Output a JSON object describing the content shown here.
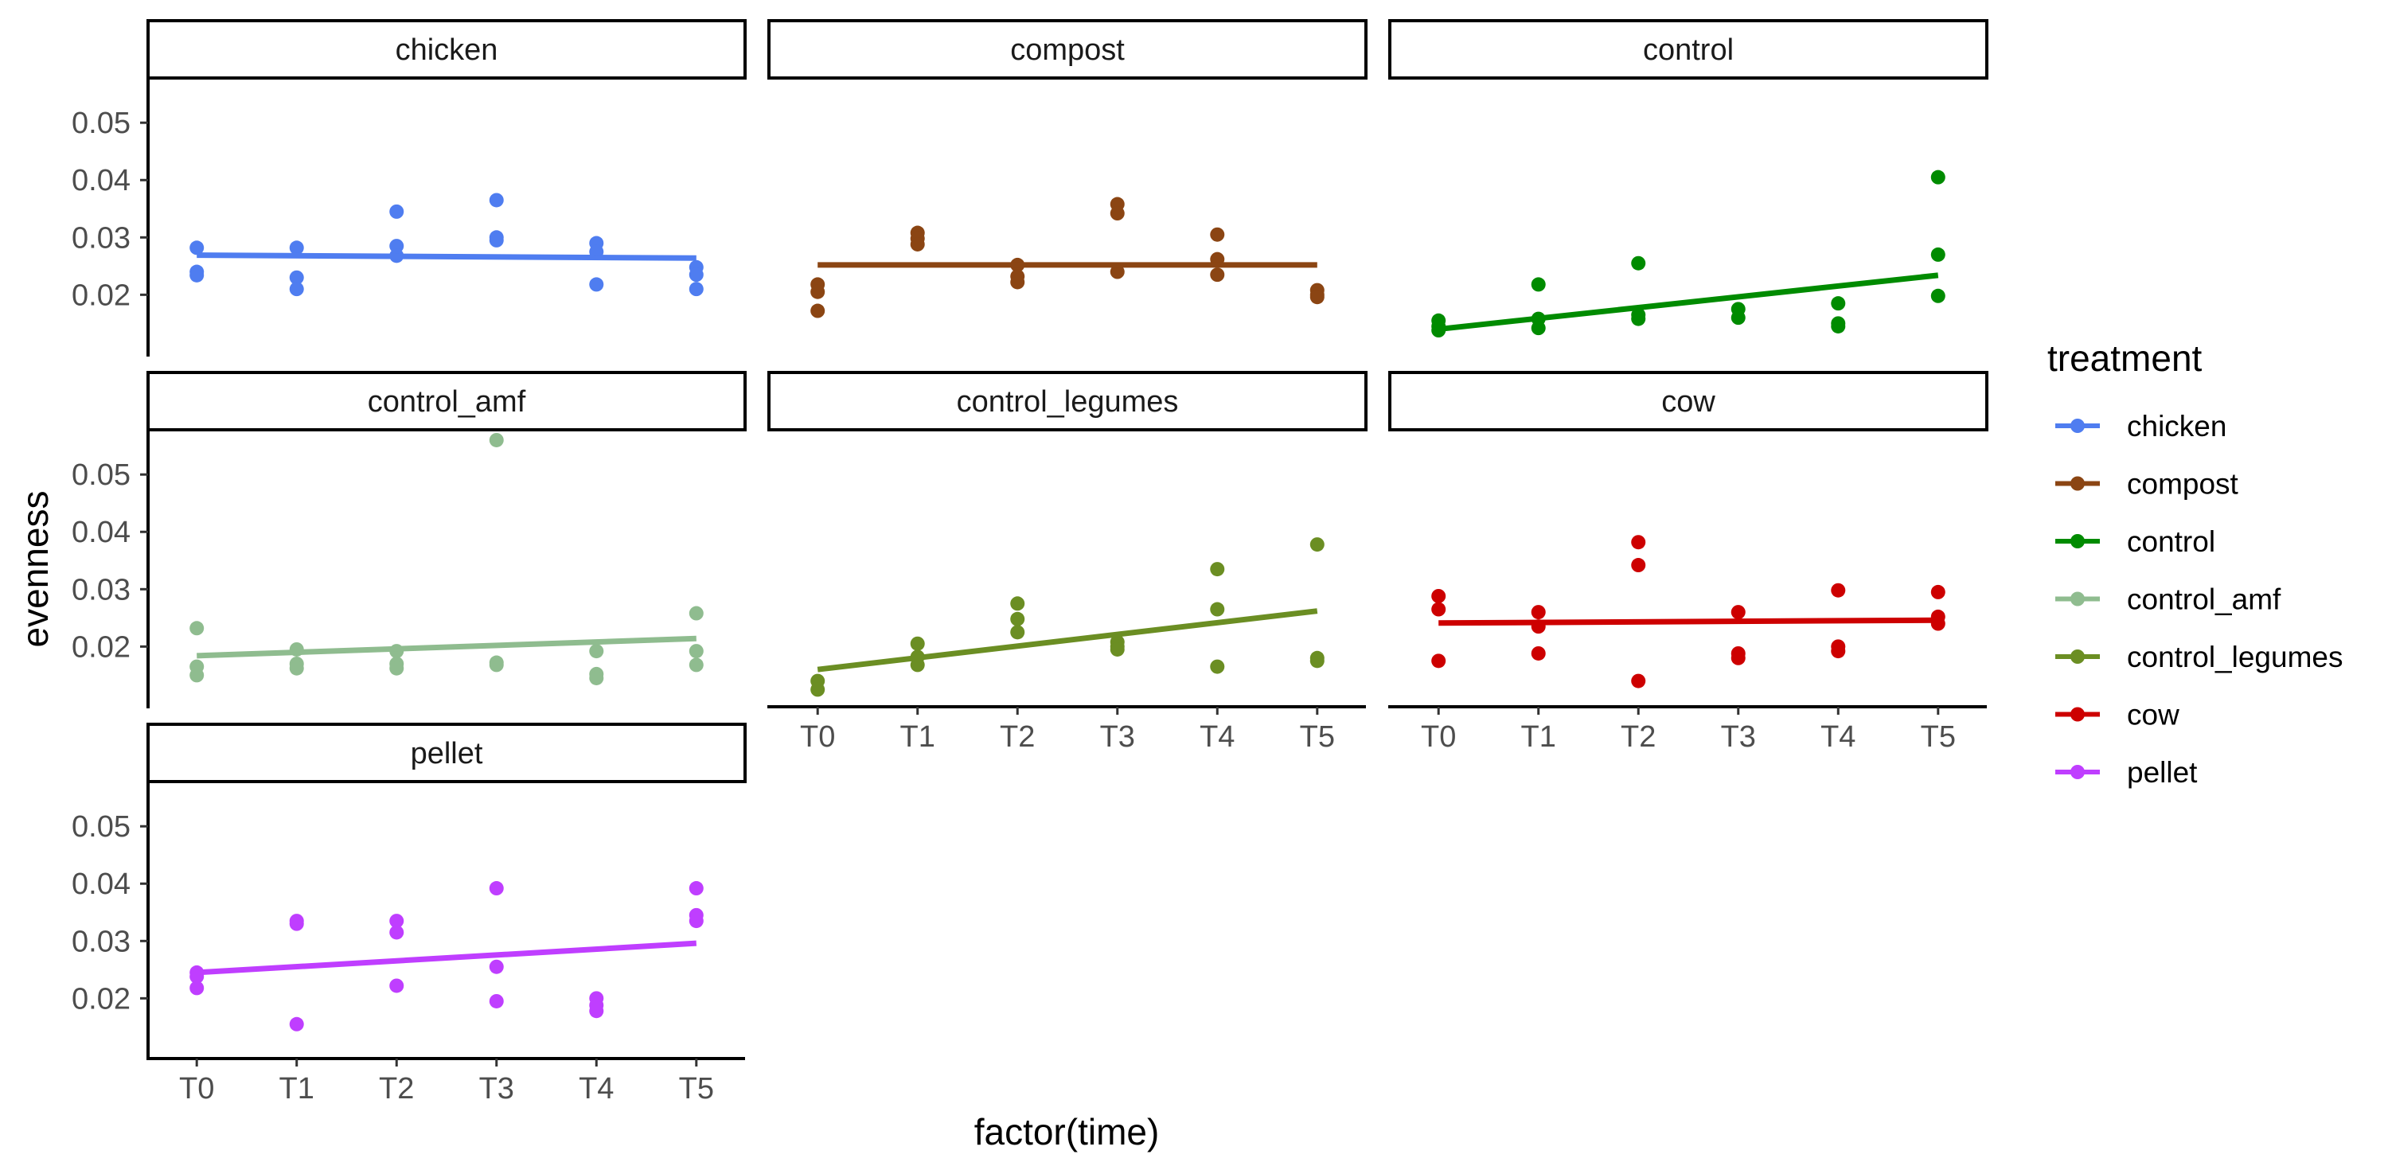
{
  "chart_data": {
    "type": "scatter",
    "facet_by": "treatment",
    "xlabel": "factor(time)",
    "ylabel": "evenness",
    "x_categories": [
      "T0",
      "T1",
      "T2",
      "T3",
      "T4",
      "T5"
    ],
    "y_ticks": [
      0.02,
      0.03,
      0.04,
      0.05
    ],
    "y_ticks_text": [
      "0.02",
      "0.03",
      "0.04",
      "0.05"
    ],
    "ylim": [
      0.0095,
      0.0578
    ],
    "legend": {
      "title": "treatment",
      "position": "right"
    },
    "grid": false,
    "panels": [
      {
        "name": "chicken",
        "color": "#4F7DF0",
        "points": [
          [
            0,
            0.0282
          ],
          [
            0,
            0.024
          ],
          [
            0,
            0.0234
          ],
          [
            1,
            0.0282
          ],
          [
            1,
            0.023
          ],
          [
            1,
            0.021
          ],
          [
            2,
            0.0345
          ],
          [
            2,
            0.0285
          ],
          [
            2,
            0.0268
          ],
          [
            3,
            0.0365
          ],
          [
            3,
            0.03
          ],
          [
            3,
            0.0295
          ],
          [
            4,
            0.029
          ],
          [
            4,
            0.0275
          ],
          [
            4,
            0.0218
          ],
          [
            5,
            0.0248
          ],
          [
            5,
            0.0235
          ],
          [
            5,
            0.021
          ]
        ],
        "trend": [
          0.0269,
          0.0264
        ]
      },
      {
        "name": "compost",
        "color": "#8B4513",
        "points": [
          [
            0,
            0.0218
          ],
          [
            0,
            0.0205
          ],
          [
            0,
            0.0172
          ],
          [
            1,
            0.0308
          ],
          [
            1,
            0.0298
          ],
          [
            1,
            0.0288
          ],
          [
            2,
            0.0252
          ],
          [
            2,
            0.0232
          ],
          [
            2,
            0.0222
          ],
          [
            3,
            0.0358
          ],
          [
            3,
            0.0342
          ],
          [
            3,
            0.024
          ],
          [
            4,
            0.0305
          ],
          [
            4,
            0.0262
          ],
          [
            4,
            0.0235
          ],
          [
            5,
            0.0208
          ],
          [
            5,
            0.02
          ],
          [
            5,
            0.0196
          ]
        ],
        "trend": [
          0.0252,
          0.0252
        ]
      },
      {
        "name": "control",
        "color": "#008B00",
        "points": [
          [
            0,
            0.0155
          ],
          [
            0,
            0.0145
          ],
          [
            0,
            0.0138
          ],
          [
            1,
            0.0218
          ],
          [
            1,
            0.0158
          ],
          [
            1,
            0.0142
          ],
          [
            2,
            0.0255
          ],
          [
            2,
            0.0165
          ],
          [
            2,
            0.0158
          ],
          [
            3,
            0.0175
          ],
          [
            3,
            0.016
          ],
          [
            4,
            0.0185
          ],
          [
            4,
            0.015
          ],
          [
            4,
            0.0145
          ],
          [
            5,
            0.0405
          ],
          [
            5,
            0.027
          ],
          [
            5,
            0.0198
          ]
        ],
        "trend": [
          0.014,
          0.0234
        ]
      },
      {
        "name": "control_amf",
        "color": "#8FBC8F",
        "points": [
          [
            0,
            0.0232
          ],
          [
            0,
            0.0165
          ],
          [
            0,
            0.015
          ],
          [
            1,
            0.0195
          ],
          [
            1,
            0.017
          ],
          [
            1,
            0.0162
          ],
          [
            2,
            0.0192
          ],
          [
            2,
            0.017
          ],
          [
            2,
            0.0162
          ],
          [
            3,
            0.056
          ],
          [
            3,
            0.0172
          ],
          [
            3,
            0.0168
          ],
          [
            4,
            0.0192
          ],
          [
            4,
            0.0152
          ],
          [
            4,
            0.0145
          ],
          [
            5,
            0.0258
          ],
          [
            5,
            0.0192
          ],
          [
            5,
            0.0168
          ]
        ],
        "trend": [
          0.0184,
          0.0214
        ]
      },
      {
        "name": "control_legumes",
        "color": "#6B8E23",
        "points": [
          [
            0,
            0.014
          ],
          [
            0,
            0.0125
          ],
          [
            1,
            0.0205
          ],
          [
            1,
            0.0182
          ],
          [
            1,
            0.0168
          ],
          [
            2,
            0.0275
          ],
          [
            2,
            0.0248
          ],
          [
            2,
            0.0225
          ],
          [
            3,
            0.0208
          ],
          [
            3,
            0.02
          ],
          [
            3,
            0.0195
          ],
          [
            4,
            0.0335
          ],
          [
            4,
            0.0265
          ],
          [
            4,
            0.0165
          ],
          [
            5,
            0.0378
          ],
          [
            5,
            0.018
          ],
          [
            5,
            0.0175
          ]
        ],
        "trend": [
          0.016,
          0.0262
        ]
      },
      {
        "name": "cow",
        "color": "#CD0000",
        "points": [
          [
            0,
            0.0288
          ],
          [
            0,
            0.0265
          ],
          [
            0,
            0.0175
          ],
          [
            1,
            0.026
          ],
          [
            1,
            0.0235
          ],
          [
            1,
            0.0188
          ],
          [
            2,
            0.0382
          ],
          [
            2,
            0.0342
          ],
          [
            2,
            0.014
          ],
          [
            3,
            0.026
          ],
          [
            3,
            0.0188
          ],
          [
            3,
            0.018
          ],
          [
            4,
            0.0298
          ],
          [
            4,
            0.02
          ],
          [
            4,
            0.0192
          ],
          [
            5,
            0.0295
          ],
          [
            5,
            0.0252
          ],
          [
            5,
            0.024
          ]
        ],
        "trend": [
          0.0241,
          0.0246
        ]
      },
      {
        "name": "pellet",
        "color": "#BF3EFF",
        "points": [
          [
            0,
            0.0245
          ],
          [
            0,
            0.0238
          ],
          [
            0,
            0.0218
          ],
          [
            1,
            0.0335
          ],
          [
            1,
            0.033
          ],
          [
            1,
            0.0155
          ],
          [
            2,
            0.0335
          ],
          [
            2,
            0.0315
          ],
          [
            2,
            0.0222
          ],
          [
            3,
            0.0392
          ],
          [
            3,
            0.0255
          ],
          [
            3,
            0.0195
          ],
          [
            4,
            0.02
          ],
          [
            4,
            0.0188
          ],
          [
            4,
            0.0178
          ],
          [
            5,
            0.0392
          ],
          [
            5,
            0.0345
          ],
          [
            5,
            0.0335
          ]
        ],
        "trend": [
          0.0245,
          0.0296
        ]
      }
    ]
  }
}
